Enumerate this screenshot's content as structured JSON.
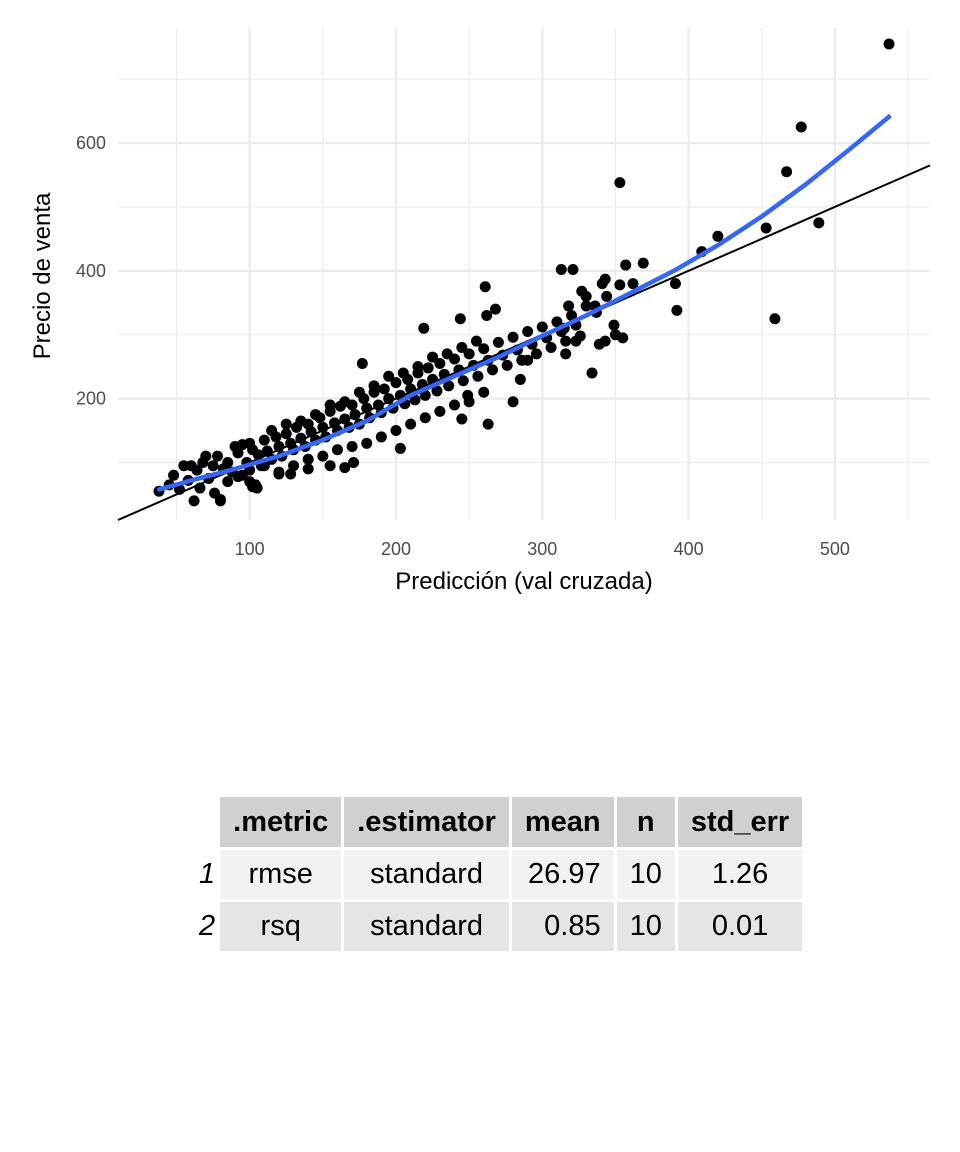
{
  "chart_data": {
    "type": "scatter",
    "xlabel": "Predicción (val cruzada)",
    "ylabel": "Precio de venta",
    "xlim": [
      10,
      565
    ],
    "ylim": [
      10,
      780
    ],
    "x_ticks": [
      100,
      200,
      300,
      400,
      500
    ],
    "y_ticks": [
      200,
      400,
      600
    ],
    "grid": true,
    "reference_line": {
      "slope": 1,
      "intercept": 0,
      "color": "#000000"
    },
    "smooth": {
      "color": "#3366FF",
      "points": [
        [
          37,
          57
        ],
        [
          60,
          72
        ],
        [
          90,
          90
        ],
        [
          120,
          110
        ],
        [
          150,
          135
        ],
        [
          180,
          165
        ],
        [
          210,
          205
        ],
        [
          240,
          235
        ],
        [
          270,
          265
        ],
        [
          300,
          298
        ],
        [
          330,
          330
        ],
        [
          360,
          365
        ],
        [
          390,
          400
        ],
        [
          420,
          440
        ],
        [
          450,
          485
        ],
        [
          480,
          535
        ],
        [
          510,
          590
        ],
        [
          538,
          643
        ]
      ]
    },
    "points": [
      [
        38,
        55
      ],
      [
        45,
        65
      ],
      [
        48,
        80
      ],
      [
        52,
        58
      ],
      [
        55,
        95
      ],
      [
        58,
        72
      ],
      [
        62,
        40
      ],
      [
        64,
        88
      ],
      [
        66,
        60
      ],
      [
        68,
        100
      ],
      [
        72,
        75
      ],
      [
        75,
        95
      ],
      [
        78,
        110
      ],
      [
        80,
        40
      ],
      [
        82,
        90
      ],
      [
        85,
        100
      ],
      [
        88,
        85
      ],
      [
        92,
        115
      ],
      [
        95,
        128
      ],
      [
        98,
        100
      ],
      [
        100,
        88
      ],
      [
        102,
        120
      ],
      [
        104,
        65
      ],
      [
        106,
        112
      ],
      [
        108,
        95
      ],
      [
        110,
        135
      ],
      [
        112,
        118
      ],
      [
        115,
        105
      ],
      [
        118,
        140
      ],
      [
        120,
        125
      ],
      [
        122,
        110
      ],
      [
        125,
        145
      ],
      [
        128,
        130
      ],
      [
        130,
        120
      ],
      [
        132,
        155
      ],
      [
        135,
        138
      ],
      [
        138,
        125
      ],
      [
        140,
        160
      ],
      [
        142,
        148
      ],
      [
        145,
        135
      ],
      [
        148,
        170
      ],
      [
        150,
        155
      ],
      [
        152,
        140
      ],
      [
        155,
        180
      ],
      [
        158,
        162
      ],
      [
        160,
        150
      ],
      [
        162,
        188
      ],
      [
        165,
        168
      ],
      [
        168,
        155
      ],
      [
        170,
        190
      ],
      [
        172,
        175
      ],
      [
        175,
        160
      ],
      [
        178,
        200
      ],
      [
        180,
        185
      ],
      [
        182,
        170
      ],
      [
        185,
        210
      ],
      [
        188,
        190
      ],
      [
        190,
        178
      ],
      [
        192,
        215
      ],
      [
        195,
        200
      ],
      [
        198,
        185
      ],
      [
        200,
        225
      ],
      [
        203,
        205
      ],
      [
        206,
        192
      ],
      [
        208,
        230
      ],
      [
        210,
        215
      ],
      [
        213,
        198
      ],
      [
        215,
        240
      ],
      [
        218,
        222
      ],
      [
        220,
        205
      ],
      [
        222,
        248
      ],
      [
        225,
        230
      ],
      [
        228,
        212
      ],
      [
        230,
        255
      ],
      [
        233,
        238
      ],
      [
        236,
        220
      ],
      [
        240,
        262
      ],
      [
        243,
        245
      ],
      [
        246,
        228
      ],
      [
        250,
        270
      ],
      [
        253,
        252
      ],
      [
        256,
        235
      ],
      [
        260,
        278
      ],
      [
        263,
        260
      ],
      [
        266,
        245
      ],
      [
        270,
        288
      ],
      [
        273,
        268
      ],
      [
        276,
        252
      ],
      [
        280,
        296
      ],
      [
        283,
        276
      ],
      [
        286,
        260
      ],
      [
        290,
        305
      ],
      [
        293,
        285
      ],
      [
        296,
        270
      ],
      [
        300,
        312
      ],
      [
        303,
        295
      ],
      [
        306,
        280
      ],
      [
        310,
        320
      ],
      [
        313,
        305
      ],
      [
        316,
        290
      ],
      [
        320,
        330
      ],
      [
        323,
        315
      ],
      [
        326,
        298
      ],
      [
        60,
        95
      ],
      [
        70,
        110
      ],
      [
        85,
        70
      ],
      [
        90,
        125
      ],
      [
        95,
        80
      ],
      [
        100,
        130
      ],
      [
        105,
        60
      ],
      [
        110,
        95
      ],
      [
        115,
        150
      ],
      [
        120,
        85
      ],
      [
        125,
        160
      ],
      [
        130,
        95
      ],
      [
        135,
        165
      ],
      [
        140,
        105
      ],
      [
        145,
        175
      ],
      [
        150,
        110
      ],
      [
        155,
        190
      ],
      [
        160,
        120
      ],
      [
        165,
        195
      ],
      [
        170,
        125
      ],
      [
        175,
        210
      ],
      [
        180,
        130
      ],
      [
        185,
        220
      ],
      [
        190,
        140
      ],
      [
        195,
        235
      ],
      [
        200,
        150
      ],
      [
        205,
        240
      ],
      [
        210,
        160
      ],
      [
        215,
        250
      ],
      [
        220,
        170
      ],
      [
        225,
        265
      ],
      [
        230,
        180
      ],
      [
        235,
        270
      ],
      [
        240,
        190
      ],
      [
        245,
        280
      ],
      [
        250,
        195
      ],
      [
        255,
        290
      ],
      [
        260,
        210
      ],
      [
        177,
        255
      ],
      [
        219,
        310
      ],
      [
        244,
        325
      ],
      [
        261,
        375
      ],
      [
        262,
        330
      ],
      [
        263,
        160
      ],
      [
        268,
        340
      ],
      [
        245,
        168
      ],
      [
        249,
        205
      ],
      [
        203,
        122
      ],
      [
        171,
        100
      ],
      [
        120,
        82
      ],
      [
        102,
        62
      ],
      [
        105,
        60
      ],
      [
        100,
        70
      ],
      [
        76,
        52
      ],
      [
        80,
        42
      ],
      [
        92,
        78
      ],
      [
        140,
        90
      ],
      [
        128,
        82
      ],
      [
        155,
        95
      ],
      [
        165,
        92
      ],
      [
        280,
        195
      ],
      [
        285,
        230
      ],
      [
        290,
        260
      ],
      [
        313,
        402
      ],
      [
        316,
        270
      ],
      [
        321,
        402
      ],
      [
        323,
        290
      ],
      [
        327,
        368
      ],
      [
        330,
        360
      ],
      [
        334,
        240
      ],
      [
        337,
        335
      ],
      [
        341,
        380
      ],
      [
        343,
        387
      ],
      [
        349,
        315
      ],
      [
        353,
        378
      ],
      [
        353,
        538
      ],
      [
        355,
        295
      ],
      [
        357,
        409
      ],
      [
        362,
        380
      ],
      [
        369,
        412
      ],
      [
        318,
        345
      ],
      [
        315,
        310
      ],
      [
        336,
        345
      ],
      [
        344,
        360
      ],
      [
        330,
        345
      ],
      [
        339,
        285
      ],
      [
        343,
        290
      ],
      [
        350,
        300
      ],
      [
        391,
        380
      ],
      [
        392,
        338
      ],
      [
        409,
        430
      ],
      [
        420,
        454
      ],
      [
        453,
        467
      ],
      [
        459,
        325
      ],
      [
        467,
        555
      ],
      [
        477,
        625
      ],
      [
        489,
        475
      ],
      [
        537,
        755
      ]
    ]
  },
  "table": {
    "columns": [
      ".metric",
      ".estimator",
      "mean",
      "n",
      "std_err"
    ],
    "rows": [
      {
        "id": "1",
        "metric": "rmse",
        "estimator": "standard",
        "mean": "26.97",
        "n": "10",
        "std_err": "1.26"
      },
      {
        "id": "2",
        "metric": "rsq",
        "estimator": "standard",
        "mean": "0.85",
        "n": "10",
        "std_err": "0.01"
      }
    ]
  },
  "colors": {
    "points": "#000000",
    "smooth": "#3366FF",
    "grid": "#EBEBEB",
    "header_bg": "#D0D0D0"
  }
}
